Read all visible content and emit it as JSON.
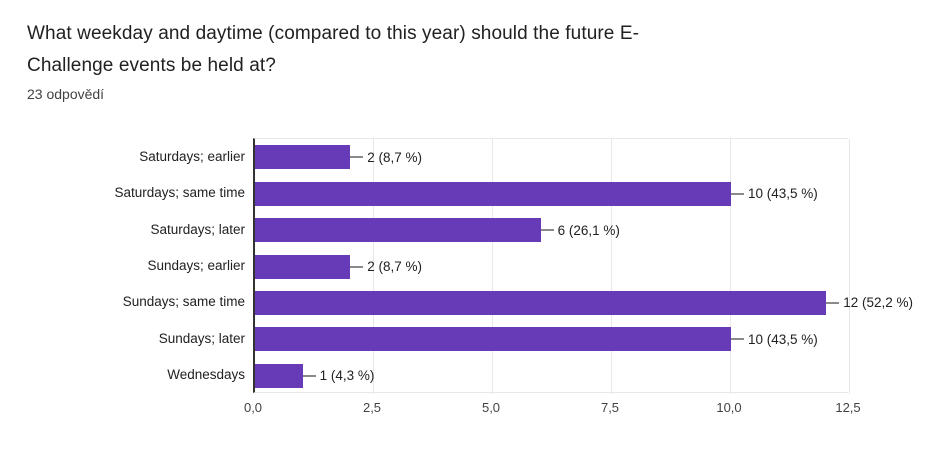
{
  "header": {
    "title_line1": "What weekday and daytime (compared to this year) should the future E-",
    "title_line2": "Challenge events be held at?",
    "responses_count": "23 odpovědí"
  },
  "chart_data": {
    "type": "bar",
    "orientation": "horizontal",
    "title": "What weekday and daytime (compared to this year) should the future E-Challenge events be held at?",
    "subtitle": "23 odpovědí",
    "categories": [
      "Saturdays; earlier",
      "Saturdays; same time",
      "Saturdays; later",
      "Sundays; earlier",
      "Sundays; same time",
      "Sundays; later",
      "Wednesdays"
    ],
    "values": [
      2,
      10,
      6,
      2,
      12,
      10,
      1
    ],
    "percentages": [
      8.7,
      43.5,
      26.1,
      8.7,
      52.2,
      43.5,
      4.3
    ],
    "value_labels": [
      "2 (8,7 %)",
      "10 (43,5 %)",
      "6 (26,1 %)",
      "2 (8,7 %)",
      "12 (52,2 %)",
      "10 (43,5 %)",
      "1 (4,3 %)"
    ],
    "x_ticks": [
      "0,0",
      "2,5",
      "5,0",
      "7,5",
      "10,0",
      "12,5"
    ],
    "x_tick_values": [
      0,
      2.5,
      5,
      7.5,
      10,
      12.5
    ],
    "xlim": [
      0,
      12.5
    ],
    "grid": true,
    "legend": "none",
    "bar_color": "#673ab7",
    "axis_color": "#333333",
    "grid_color": "#e8e8e8",
    "callout_color": "#8a8a8a",
    "text_color": "#212121"
  }
}
